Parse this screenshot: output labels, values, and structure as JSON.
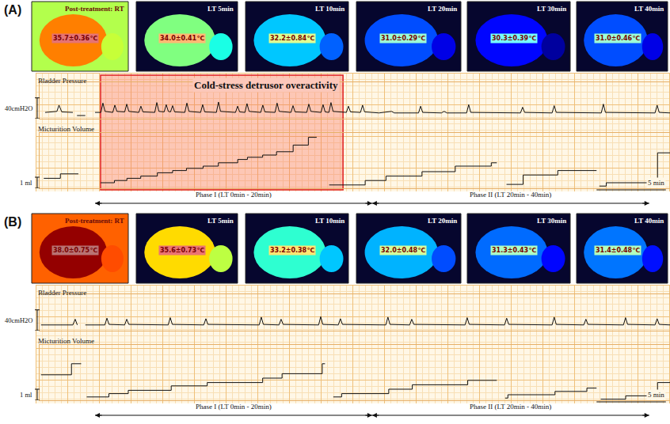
{
  "chart_data": [
    {
      "type": "line",
      "panel": "(A)",
      "xlim": [
        -4,
        41.5
      ],
      "tick_labels": false,
      "grid": true,
      "images": [
        {
          "label": "Post-treatment: RT",
          "temperature": 35.7,
          "temperature_label": "35.7±0.36℃"
        },
        {
          "label": "LT 5min",
          "temperature": 34.0,
          "temperature_label": "34.0±0.41℃"
        },
        {
          "label": "LT 10min",
          "temperature": 32.2,
          "temperature_label": "32.2±0.84℃"
        },
        {
          "label": "LT 20min",
          "temperature": 31.0,
          "temperature_label": "31.0±0.29℃"
        },
        {
          "label": "LT 30min",
          "temperature": 30.3,
          "temperature_label": "30.3±0.39℃"
        },
        {
          "label": "LT 40min",
          "temperature": 31.0,
          "temperature_label": "31.0±0.46℃"
        }
      ],
      "series": [
        {
          "name": "Bladder Pressure",
          "color": "#111111",
          "line_style": "solid",
          "ylim": [
            0,
            70
          ],
          "scale_bar": {
            "value": 40,
            "label": "40cmH2O"
          },
          "x": [
            -3.6,
            -3.0,
            -2.75,
            -2.6,
            -2.4,
            -1.6,
            -1.45,
            -1.3,
            -0.7,
            -0.3,
            0.0,
            0.42,
            0.57,
            0.72,
            1.28,
            1.43,
            1.58,
            2.14,
            2.29,
            2.44,
            3.16,
            3.31,
            3.46,
            4.31,
            4.46,
            4.61,
            4.99,
            5.14,
            5.29,
            5.45,
            5.6,
            5.75,
            6.48,
            6.63,
            6.78,
            7.62,
            7.77,
            7.92,
            8.76,
            8.91,
            9.06,
            10.14,
            10.29,
            10.44,
            10.82,
            10.97,
            11.12,
            11.96,
            12.11,
            12.26,
            12.99,
            13.14,
            13.29,
            14.14,
            14.29,
            14.44,
            15.28,
            15.43,
            15.58,
            16.31,
            16.46,
            16.61,
            16.88,
            17.03,
            17.18,
            18.14,
            18.29,
            18.44,
            19.16,
            19.31,
            19.46,
            20.5,
            21.4,
            21.6,
            23.35,
            23.5,
            23.65,
            25.0,
            25.2,
            25.4,
            26.82,
            26.97,
            27.12,
            30.71,
            30.86,
            31.01,
            32.99,
            33.14,
            33.29,
            36.54,
            36.69,
            36.84,
            40.42,
            40.57,
            40.72,
            41.5
          ],
          "values": [
            12,
            13,
            14,
            26,
            13,
            12,
            null,
            6,
            6,
            null,
            12,
            12,
            30,
            14,
            12,
            26,
            14,
            13,
            28,
            14,
            12,
            24,
            13,
            12,
            31,
            14,
            13,
            27,
            14,
            13,
            25,
            13,
            12,
            30,
            14,
            12,
            27,
            13,
            12,
            32,
            14,
            12,
            24,
            13,
            12,
            29,
            14,
            12,
            26,
            13,
            12,
            30,
            14,
            12,
            25,
            13,
            12,
            28,
            14,
            12,
            27,
            13,
            12,
            31,
            14,
            12,
            24,
            13,
            12,
            26,
            13,
            11,
            14,
            11,
            11,
            24,
            12,
            11,
            14,
            11,
            11,
            27,
            12,
            11,
            22,
            12,
            11,
            25,
            12,
            11,
            28,
            12,
            11,
            26,
            12,
            11
          ]
        },
        {
          "name": "Micturition Volume",
          "color": "#111111",
          "line_style": "step",
          "ylim": [
            0,
            5
          ],
          "scale_bar": {
            "value": 1,
            "label": "1 ml"
          },
          "x": [
            -3.7,
            -2.5,
            -1.2,
            -1.1,
            0.4,
            1.4,
            2.3,
            3.3,
            4.5,
            5.6,
            6.6,
            7.8,
            8.9,
            10.3,
            11.0,
            12.1,
            13.1,
            14.3,
            15.4,
            16.0,
            16.4,
            16.9,
            19.5,
            21.0,
            23.6,
            26.0,
            28.6,
            29.0,
            29.3,
            29.7,
            30.9,
            33.4,
            36.2,
            36.3,
            36.4,
            36.9,
            40.6,
            41.5
          ],
          "values": [
            0.9,
            1.3,
            1.3,
            null,
            0.5,
            0.7,
            0.9,
            1.1,
            1.4,
            1.6,
            1.8,
            2.0,
            2.3,
            2.6,
            2.8,
            3.0,
            3.3,
            3.9,
            4.6,
            4.6,
            null,
            0.3,
            0.7,
            1.1,
            1.5,
            2.0,
            2.3,
            2.3,
            null,
            0.35,
            1.2,
            1.6,
            1.6,
            null,
            0.2,
            0.5,
            3.2,
            3.2
          ]
        }
      ],
      "time_scale_bar": {
        "value": 5,
        "label": "5 min"
      },
      "phases": [
        {
          "label": "Phase I (LT 0min - 20min)",
          "start": 0,
          "end": 20
        },
        {
          "label": "Phase II (LT 20min - 40min)",
          "start": 20,
          "end": 40
        }
      ],
      "highlight": {
        "label": "Cold-stress detrusor overactivity",
        "start": 0.4,
        "end": 17.9
      }
    },
    {
      "type": "line",
      "panel": "(B)",
      "xlim": [
        -4,
        41.5
      ],
      "tick_labels": false,
      "grid": true,
      "images": [
        {
          "label": "Post-treatment: RT",
          "temperature": 38.0,
          "temperature_label": "38.0±0.75℃"
        },
        {
          "label": "LT 5min",
          "temperature": 35.6,
          "temperature_label": "35.6±0.73℃"
        },
        {
          "label": "LT 10min",
          "temperature": 33.2,
          "temperature_label": "33.2±0.38℃"
        },
        {
          "label": "LT 20min",
          "temperature": 32.0,
          "temperature_label": "32.0±0.48℃"
        },
        {
          "label": "LT 30min",
          "temperature": 31.3,
          "temperature_label": "31.3±0.43℃"
        },
        {
          "label": "LT 40min",
          "temperature": 31.4,
          "temperature_label": "31.4±0.48℃"
        }
      ],
      "series": [
        {
          "name": "Bladder Pressure",
          "color": "#111111",
          "line_style": "solid",
          "ylim": [
            0,
            70
          ],
          "scale_bar": {
            "value": 40,
            "label": "40cmH2O"
          },
          "x": [
            -3.9,
            -1.6,
            -1.43,
            -1.28,
            -1.1,
            -0.7,
            0.71,
            0.86,
            1.01,
            2.14,
            2.29,
            2.44,
            5.28,
            5.43,
            5.58,
            7.85,
            8.0,
            8.15,
            11.85,
            12.0,
            12.15,
            13.28,
            13.43,
            13.58,
            16.14,
            16.29,
            16.44,
            17.56,
            17.71,
            17.86,
            20.99,
            21.14,
            21.29,
            22.71,
            22.86,
            23.01,
            26.71,
            26.86,
            27.01,
            29.56,
            29.71,
            29.86,
            32.99,
            33.14,
            33.29,
            35.28,
            35.43,
            35.58,
            38.14,
            38.29,
            38.44,
            40.42,
            40.57,
            40.72,
            41.5
          ],
          "values": [
            11,
            11,
            22,
            11,
            null,
            11,
            11,
            24,
            12,
            11,
            22,
            12,
            11,
            25,
            12,
            11,
            23,
            12,
            11,
            26,
            12,
            11,
            22,
            12,
            11,
            27,
            12,
            11,
            23,
            12,
            11,
            26,
            12,
            11,
            22,
            12,
            11,
            25,
            12,
            11,
            24,
            12,
            11,
            26,
            12,
            11,
            22,
            12,
            11,
            25,
            12,
            11,
            23,
            12,
            11
          ]
        },
        {
          "name": "Micturition Volume",
          "color": "#111111",
          "line_style": "step",
          "ylim": [
            0,
            5
          ],
          "scale_bar": {
            "value": 1,
            "label": "1 ml"
          },
          "x": [
            -3.9,
            -1.7,
            -1.0,
            -0.9,
            -0.6,
            1.0,
            2.4,
            5.5,
            8.1,
            12.1,
            13.5,
            16.4,
            16.6,
            16.8,
            17.2,
            17.8,
            21.2,
            22.9,
            26.9,
            29.0,
            29.2,
            29.6,
            29.8,
            33.2,
            35.5,
            36.2,
            36.3,
            36.5,
            38.3,
            40.6,
            41.5
          ],
          "values": [
            2.3,
            3.3,
            3.3,
            null,
            0.3,
            0.6,
            0.9,
            1.3,
            1.6,
            2.0,
            2.4,
            3.3,
            3.3,
            null,
            0.3,
            0.6,
            1.0,
            1.4,
            1.8,
            1.8,
            null,
            0.2,
            0.5,
            0.8,
            1.1,
            1.1,
            null,
            0.1,
            0.4,
            1.6,
            1.6
          ]
        }
      ],
      "time_scale_bar": {
        "value": 5,
        "label": "5 min"
      },
      "phases": [
        {
          "label": "Phase I (LT 0min - 20min)",
          "start": 0,
          "end": 20
        },
        {
          "label": "Phase II (LT 20min - 40min)",
          "start": 20,
          "end": 40
        }
      ]
    }
  ]
}
